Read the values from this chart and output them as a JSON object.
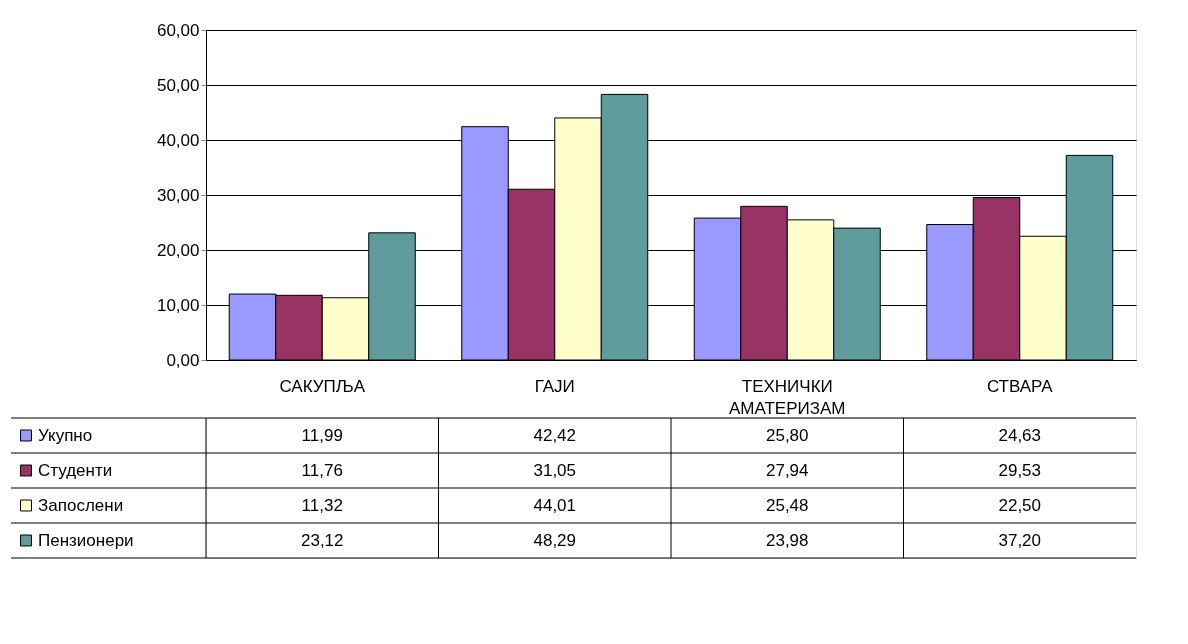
{
  "chart_data": {
    "type": "bar",
    "categories": [
      "САКУПЉА",
      "ГАЈИ",
      "ТЕХНИЧКИ АМАТЕРИЗАМ",
      "СТВАРА"
    ],
    "series": [
      {
        "name": "Укупно",
        "color": "#9999ff",
        "values": [
          11.99,
          42.42,
          25.8,
          24.63
        ],
        "value_labels": [
          "11,99",
          "42,42",
          "25,80",
          "24,63"
        ]
      },
      {
        "name": "Студенти",
        "color": "#993366",
        "values": [
          11.76,
          31.05,
          27.94,
          29.53
        ],
        "value_labels": [
          "11,76",
          "31,05",
          "27,94",
          "29,53"
        ]
      },
      {
        "name": "Запослени",
        "color": "#ffffcc",
        "values": [
          11.32,
          44.01,
          25.48,
          22.5
        ],
        "value_labels": [
          "11,32",
          "44,01",
          "25,48",
          "22,50"
        ]
      },
      {
        "name": "Пензионери",
        "color": "#5f9c9c",
        "values": [
          23.12,
          48.29,
          23.98,
          37.2
        ],
        "value_labels": [
          "23,12",
          "48,29",
          "23,98",
          "37,20"
        ]
      }
    ],
    "ylim": [
      0,
      60
    ],
    "yticks": [
      {
        "value": 0,
        "label": "0,00"
      },
      {
        "value": 10,
        "label": "10,00"
      },
      {
        "value": 20,
        "label": "20,00"
      },
      {
        "value": 30,
        "label": "30,00"
      },
      {
        "value": 40,
        "label": "40,00"
      },
      {
        "value": 50,
        "label": "50,00"
      },
      {
        "value": 60,
        "label": "60,00"
      }
    ],
    "grid": "y",
    "legend": "bottom"
  }
}
